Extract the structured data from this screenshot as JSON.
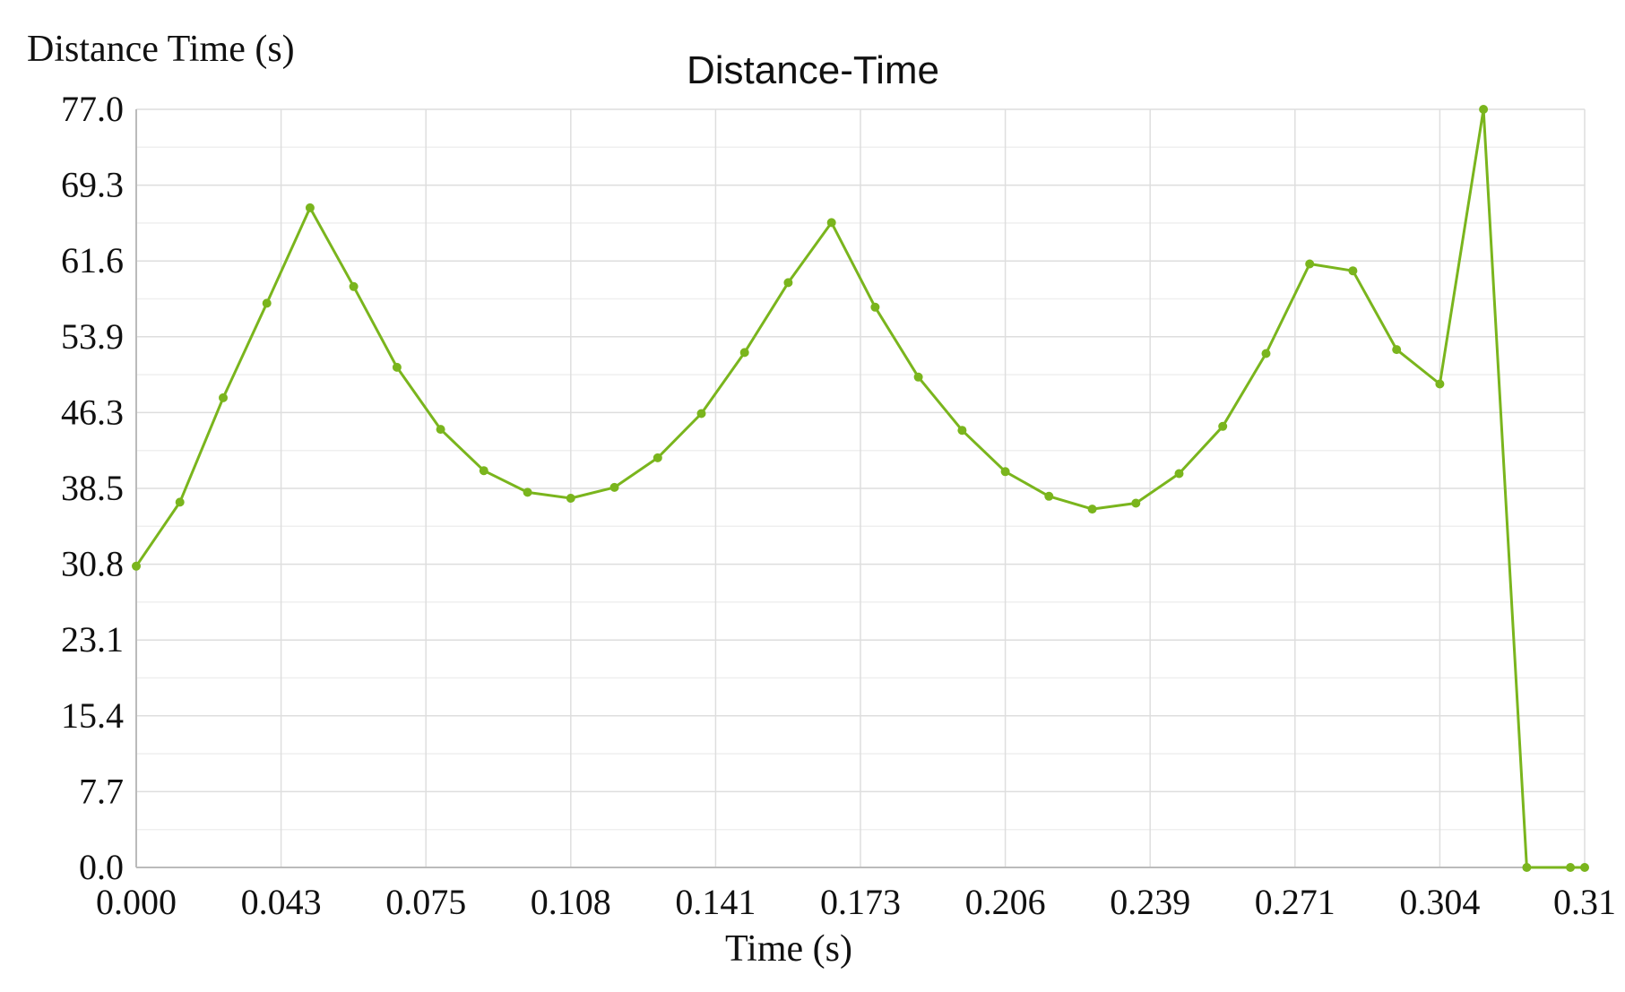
{
  "chart_data": {
    "type": "line",
    "title": "Distance-Time",
    "ylabel": "Distance Time (s)",
    "xlabel": "Time (s)",
    "x_ticks": [
      "0.000",
      "0.043",
      "0.075",
      "0.108",
      "0.141",
      "0.173",
      "0.206",
      "0.239",
      "0.271",
      "0.304",
      "0.31"
    ],
    "y_ticks": [
      "77.0",
      "69.3",
      "61.6",
      "53.9",
      "46.3",
      "38.5",
      "30.8",
      "23.1",
      "15.4",
      "7.7",
      "0.0"
    ],
    "xlim": [
      0.0,
      0.325
    ],
    "ylim": [
      0.0,
      77.0
    ],
    "grid": true,
    "legend": "none",
    "series_color": "#7ab51d",
    "series": [
      {
        "x": [
          0.0,
          0.0098,
          0.0195,
          0.0293,
          0.039,
          0.0488,
          0.0585,
          0.0683,
          0.078,
          0.0878,
          0.0975,
          0.1073,
          0.117,
          0.1268,
          0.1365,
          0.1463,
          0.156,
          0.1658,
          0.1755,
          0.1853,
          0.195,
          0.2048,
          0.2145,
          0.2243,
          0.234,
          0.2438,
          0.2535,
          0.2633,
          0.273,
          0.2828,
          0.2925,
          0.3023,
          0.312,
          0.3218,
          0.325
        ],
        "y": [
          30.6,
          37.1,
          47.7,
          57.3,
          67.0,
          59.0,
          50.8,
          44.5,
          40.3,
          38.1,
          37.5,
          38.6,
          41.6,
          46.1,
          52.3,
          59.4,
          65.5,
          56.9,
          49.8,
          44.4,
          40.2,
          37.7,
          36.4,
          37.0,
          40.0,
          44.8,
          52.2,
          61.3,
          60.6,
          52.6,
          49.1,
          77.0,
          0.0,
          0.0,
          0.0
        ]
      }
    ]
  }
}
